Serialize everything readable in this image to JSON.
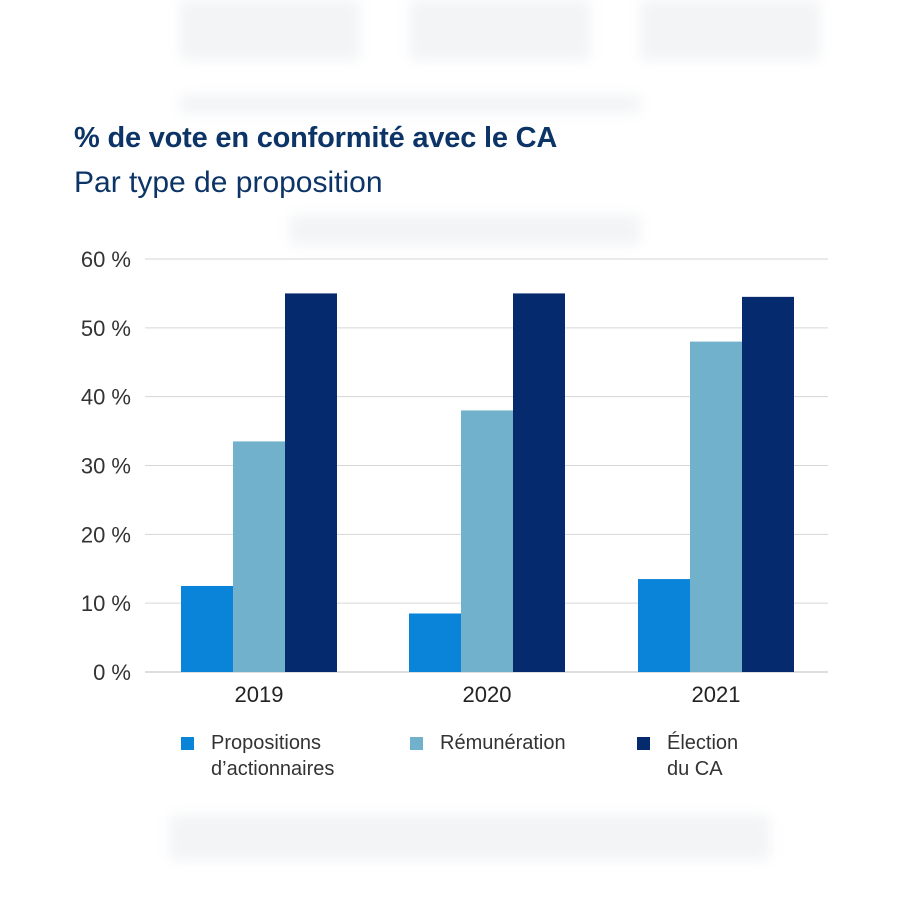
{
  "chart_data": {
    "type": "bar",
    "title": "% de vote en conformité avec le CA",
    "subtitle": "Par type de proposition",
    "categories": [
      "2019",
      "2020",
      "2021"
    ],
    "series": [
      {
        "name": "Propositions\nd’actionnaires",
        "color": "#0a84d8",
        "values": [
          12.5,
          8.5,
          13.5
        ]
      },
      {
        "name": "Rémunération",
        "color": "#72b1cb",
        "values": [
          33.5,
          38.0,
          48.0
        ]
      },
      {
        "name": "Élection\ndu CA",
        "color": "#052a6e",
        "values": [
          55.0,
          55.0,
          54.5
        ]
      }
    ],
    "ylim": [
      0,
      60
    ],
    "yticks": [
      0,
      10,
      20,
      30,
      40,
      50,
      60
    ],
    "ytick_labels": [
      "0 %",
      "10 %",
      "20 %",
      "30 %",
      "40 %",
      "50 %",
      "60 %"
    ],
    "xlabel": "",
    "ylabel": "",
    "grid": true,
    "legend_position": "bottom"
  }
}
